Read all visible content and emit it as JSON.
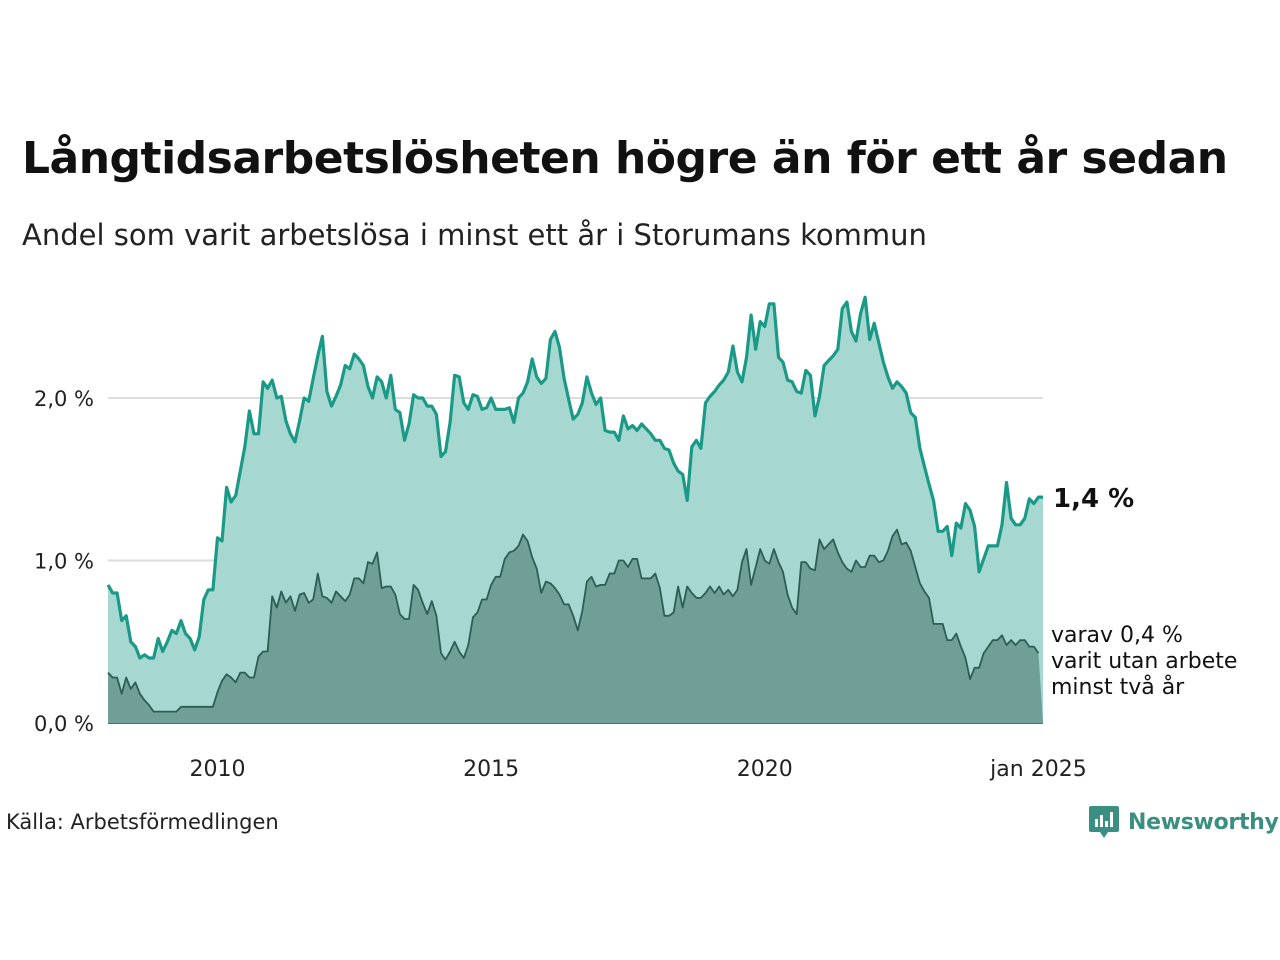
{
  "title": "Långtidsarbetslösheten högre än för ett år sedan",
  "subtitle": "Andel som varit arbetslösa i minst ett år i Storumans kommun",
  "source": "Källa: Arbetsförmedlingen",
  "brand": {
    "name": "Newsworthy",
    "icon": "newsworthy-logo-icon"
  },
  "colors": {
    "total_line": "#1a9a86",
    "total_fill": "#a6d8d1",
    "subset_line": "#2c5e55",
    "subset_fill": "#6f9f96",
    "grid": "#dddddd",
    "brand": "#3a8f82"
  },
  "chart_data": {
    "type": "area",
    "x_start": "2008-01",
    "x_step": "month",
    "x_ticks": [
      "2010",
      "2015",
      "2020",
      "jan 2025"
    ],
    "y_ticks": [
      "0,0 %",
      "1,0 %",
      "2,0 %"
    ],
    "ylim": [
      0,
      2.6
    ],
    "grid": true,
    "end_labels": {
      "total": "1,4 %",
      "subset": [
        "varav 0,4 %",
        "varit utan arbete",
        "minst två år"
      ]
    },
    "series": [
      {
        "key": "total",
        "values": [
          0.85,
          0.8,
          0.8,
          0.63,
          0.66,
          0.5,
          0.47,
          0.4,
          0.42,
          0.4,
          0.4,
          0.52,
          0.44,
          0.5,
          0.57,
          0.55,
          0.63,
          0.55,
          0.52,
          0.45,
          0.53,
          0.76,
          0.82,
          0.82,
          1.14,
          1.12,
          1.45,
          1.36,
          1.4,
          1.55,
          1.7,
          1.92,
          1.78,
          1.78,
          2.1,
          2.06,
          2.11,
          2.0,
          2.01,
          1.86,
          1.78,
          1.73,
          1.86,
          2.0,
          1.98,
          2.12,
          2.26,
          2.38,
          2.04,
          1.95,
          2.01,
          2.08,
          2.2,
          2.18,
          2.27,
          2.24,
          2.2,
          2.07,
          2.0,
          2.13,
          2.1,
          2.0,
          2.14,
          1.93,
          1.91,
          1.74,
          1.84,
          2.02,
          2.0,
          2.0,
          1.95,
          1.95,
          1.9,
          1.64,
          1.67,
          1.85,
          2.14,
          2.13,
          1.97,
          1.93,
          2.02,
          2.01,
          1.93,
          1.94,
          2.0,
          1.93,
          1.93,
          1.93,
          1.94,
          1.85,
          2.0,
          2.03,
          2.1,
          2.24,
          2.13,
          2.09,
          2.12,
          2.36,
          2.41,
          2.31,
          2.12,
          1.99,
          1.87,
          1.9,
          1.97,
          2.13,
          2.03,
          1.96,
          2.0,
          1.8,
          1.79,
          1.79,
          1.74,
          1.89,
          1.81,
          1.83,
          1.8,
          1.84,
          1.81,
          1.78,
          1.74,
          1.74,
          1.69,
          1.68,
          1.6,
          1.55,
          1.53,
          1.37,
          1.7,
          1.74,
          1.69,
          1.97,
          2.01,
          2.04,
          2.08,
          2.11,
          2.16,
          2.32,
          2.16,
          2.1,
          2.25,
          2.51,
          2.3,
          2.47,
          2.44,
          2.58,
          2.58,
          2.25,
          2.22,
          2.11,
          2.1,
          2.04,
          2.03,
          2.17,
          2.14,
          1.89,
          2.01,
          2.2,
          2.23,
          2.26,
          2.3,
          2.55,
          2.59,
          2.41,
          2.35,
          2.52,
          2.62,
          2.36,
          2.46,
          2.34,
          2.22,
          2.13,
          2.06,
          2.1,
          2.07,
          2.03,
          1.91,
          1.88,
          1.69,
          1.58,
          1.47,
          1.37,
          1.18,
          1.18,
          1.21,
          1.03,
          1.23,
          1.2,
          1.35,
          1.31,
          1.21,
          0.93,
          1.01,
          1.09,
          1.09,
          1.09,
          1.22,
          1.48,
          1.26,
          1.22,
          1.22,
          1.26,
          1.38,
          1.35,
          1.39,
          1.39
        ]
      },
      {
        "key": "subset",
        "values": [
          0.31,
          0.28,
          0.28,
          0.18,
          0.28,
          0.21,
          0.25,
          0.18,
          0.14,
          0.11,
          0.07,
          0.07,
          0.07,
          0.07,
          0.07,
          0.07,
          0.1,
          0.1,
          0.1,
          0.1,
          0.1,
          0.1,
          0.1,
          0.1,
          0.19,
          0.26,
          0.3,
          0.28,
          0.25,
          0.31,
          0.31,
          0.28,
          0.28,
          0.41,
          0.44,
          0.44,
          0.78,
          0.71,
          0.81,
          0.74,
          0.78,
          0.69,
          0.79,
          0.8,
          0.74,
          0.76,
          0.92,
          0.78,
          0.77,
          0.74,
          0.81,
          0.78,
          0.75,
          0.79,
          0.89,
          0.89,
          0.86,
          0.99,
          0.98,
          1.05,
          0.83,
          0.84,
          0.84,
          0.79,
          0.67,
          0.64,
          0.64,
          0.85,
          0.82,
          0.74,
          0.67,
          0.75,
          0.66,
          0.43,
          0.39,
          0.44,
          0.5,
          0.44,
          0.4,
          0.48,
          0.65,
          0.68,
          0.76,
          0.76,
          0.85,
          0.9,
          0.9,
          1.01,
          1.05,
          1.06,
          1.09,
          1.16,
          1.12,
          1.02,
          0.95,
          0.8,
          0.87,
          0.86,
          0.83,
          0.79,
          0.73,
          0.73,
          0.66,
          0.57,
          0.69,
          0.87,
          0.9,
          0.84,
          0.85,
          0.85,
          0.92,
          0.92,
          1.0,
          1.0,
          0.96,
          1.01,
          1.01,
          0.89,
          0.89,
          0.89,
          0.92,
          0.83,
          0.66,
          0.66,
          0.68,
          0.84,
          0.71,
          0.84,
          0.8,
          0.77,
          0.77,
          0.8,
          0.84,
          0.8,
          0.84,
          0.79,
          0.82,
          0.78,
          0.82,
          0.99,
          1.07,
          0.85,
          0.96,
          1.07,
          1.0,
          0.98,
          1.07,
          0.99,
          0.93,
          0.79,
          0.71,
          0.67,
          0.99,
          0.99,
          0.95,
          0.94,
          1.13,
          1.07,
          1.1,
          1.13,
          1.05,
          0.99,
          0.95,
          0.93,
          1.0,
          0.96,
          0.96,
          1.03,
          1.03,
          0.99,
          1.0,
          1.06,
          1.15,
          1.19,
          1.1,
          1.11,
          1.06,
          0.96,
          0.86,
          0.81,
          0.77,
          0.61,
          0.61,
          0.61,
          0.51,
          0.51,
          0.55,
          0.47,
          0.4,
          0.27,
          0.34,
          0.34,
          0.43,
          0.47,
          0.51,
          0.51,
          0.54,
          0.48,
          0.51,
          0.48,
          0.51,
          0.51,
          0.47,
          0.47,
          0.43
        ]
      }
    ]
  }
}
